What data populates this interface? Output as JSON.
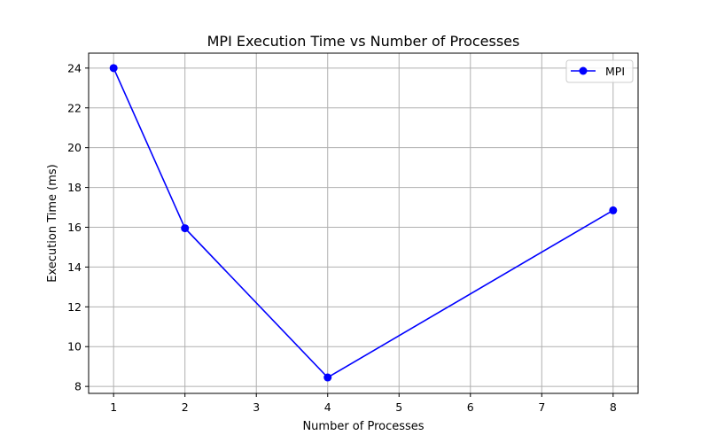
{
  "chart_data": {
    "type": "line",
    "title": "MPI Execution Time vs Number of Processes",
    "xlabel": "Number of Processes",
    "ylabel": "Execution Time (ms)",
    "x": [
      1,
      2,
      4,
      8
    ],
    "series": [
      {
        "name": "MPI",
        "values": [
          24.0,
          15.95,
          8.45,
          16.85
        ],
        "color": "#0000ff",
        "marker": "circle"
      }
    ],
    "xlim": [
      0.65,
      8.35
    ],
    "ylim": [
      7.65,
      24.75
    ],
    "xticks": [
      1,
      2,
      3,
      4,
      5,
      6,
      7,
      8
    ],
    "yticks": [
      8,
      10,
      12,
      14,
      16,
      18,
      20,
      22,
      24
    ],
    "grid": true,
    "legend_position": "top-right",
    "grid_color": "#b0b0b0"
  }
}
